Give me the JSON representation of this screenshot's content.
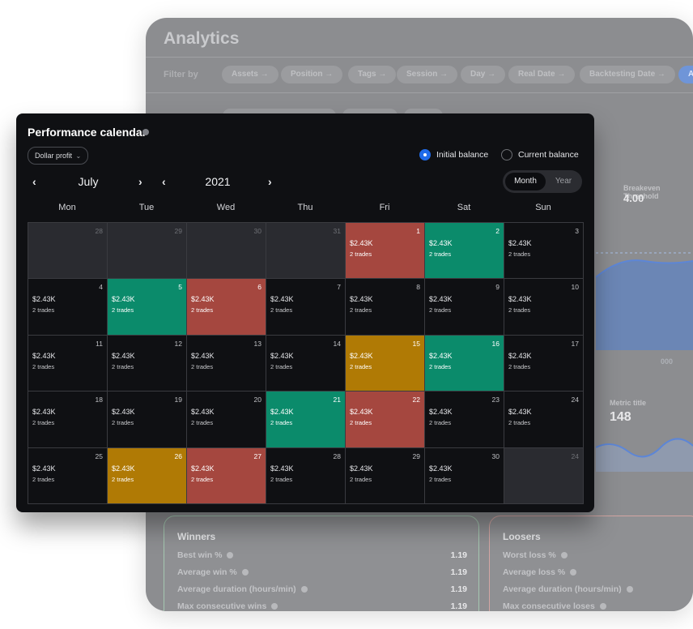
{
  "background": {
    "title": "Analytics",
    "filter_label": "Filter by",
    "filters": [
      "Assets →",
      "Position →",
      "Tags →",
      "Session →",
      "Day →",
      "Real Date →",
      "Backtesting Date →",
      "A"
    ],
    "metric1": {
      "title": "Breakeven Threshold",
      "value": "4.00"
    },
    "axis_tick": "000",
    "metric2": {
      "title": "Metric title",
      "value": "148"
    },
    "winners": {
      "title": "Winners",
      "rows": [
        {
          "label": "Best win %",
          "value": "1.19"
        },
        {
          "label": "Average win %",
          "value": "1.19"
        },
        {
          "label": "Average duration (hours/min)",
          "value": "1.19"
        },
        {
          "label": "Max consecutive wins",
          "value": "1.19"
        }
      ]
    },
    "loosers": {
      "title": "Loosers",
      "rows": [
        {
          "label": "Worst loss %"
        },
        {
          "label": "Average loss %"
        },
        {
          "label": "Average duration (hours/min)"
        },
        {
          "label": "Max consecutive loses"
        }
      ]
    }
  },
  "calendar": {
    "title": "Performance calendar",
    "metric_select": "Dollar profit",
    "balance_options": {
      "initial": "Initial balance",
      "current": "Current balance",
      "selected": "initial"
    },
    "month": "July",
    "year": "2021",
    "view_toggle": {
      "month": "Month",
      "year": "Year",
      "active": "Month"
    },
    "weekdays": [
      "Mon",
      "Tue",
      "Wed",
      "Thu",
      "Fri",
      "Sat",
      "Sun"
    ],
    "colors": {
      "loss": "#a5473f",
      "profit": "#0b8b6b",
      "neutral": "#b07a05",
      "outside": "#2a2b30"
    },
    "days": [
      {
        "day": "28",
        "state": "outside"
      },
      {
        "day": "29",
        "state": "outside"
      },
      {
        "day": "30",
        "state": "outside"
      },
      {
        "day": "31",
        "state": "outside"
      },
      {
        "day": "1",
        "state": "loss",
        "amount": "$2.43K",
        "trades": "2 trades"
      },
      {
        "day": "2",
        "state": "profit",
        "amount": "$2.43K",
        "trades": "2 trades"
      },
      {
        "day": "3",
        "state": "default",
        "amount": "$2.43K",
        "trades": "2 trades"
      },
      {
        "day": "4",
        "state": "default",
        "amount": "$2.43K",
        "trades": "2 trades"
      },
      {
        "day": "5",
        "state": "profit",
        "amount": "$2.43K",
        "trades": "2 trades"
      },
      {
        "day": "6",
        "state": "loss",
        "amount": "$2.43K",
        "trades": "2 trades"
      },
      {
        "day": "7",
        "state": "default",
        "amount": "$2.43K",
        "trades": "2 trades"
      },
      {
        "day": "8",
        "state": "default",
        "amount": "$2.43K",
        "trades": "2 trades"
      },
      {
        "day": "9",
        "state": "default",
        "amount": "$2.43K",
        "trades": "2 trades"
      },
      {
        "day": "10",
        "state": "default",
        "amount": "$2.43K",
        "trades": "2 trades"
      },
      {
        "day": "11",
        "state": "default",
        "amount": "$2.43K",
        "trades": "2 trades"
      },
      {
        "day": "12",
        "state": "default",
        "amount": "$2.43K",
        "trades": "2 trades"
      },
      {
        "day": "13",
        "state": "default",
        "amount": "$2.43K",
        "trades": "2 trades"
      },
      {
        "day": "14",
        "state": "default",
        "amount": "$2.43K",
        "trades": "2 trades"
      },
      {
        "day": "15",
        "state": "neutral",
        "amount": "$2.43K",
        "trades": "2 trades"
      },
      {
        "day": "16",
        "state": "profit",
        "amount": "$2.43K",
        "trades": "2 trades"
      },
      {
        "day": "17",
        "state": "default",
        "amount": "$2.43K",
        "trades": "2 trades"
      },
      {
        "day": "18",
        "state": "default",
        "amount": "$2.43K",
        "trades": "2 trades"
      },
      {
        "day": "19",
        "state": "default",
        "amount": "$2.43K",
        "trades": "2 trades"
      },
      {
        "day": "20",
        "state": "default",
        "amount": "$2.43K",
        "trades": "2 trades"
      },
      {
        "day": "21",
        "state": "profit",
        "amount": "$2.43K",
        "trades": "2 trades"
      },
      {
        "day": "22",
        "state": "loss",
        "amount": "$2.43K",
        "trades": "2 trades"
      },
      {
        "day": "23",
        "state": "default",
        "amount": "$2.43K",
        "trades": "2 trades"
      },
      {
        "day": "24",
        "state": "default",
        "amount": "$2.43K",
        "trades": "2 trades"
      },
      {
        "day": "25",
        "state": "default",
        "amount": "$2.43K",
        "trades": "2 trades"
      },
      {
        "day": "26",
        "state": "neutral",
        "amount": "$2.43K",
        "trades": "2 trades"
      },
      {
        "day": "27",
        "state": "loss",
        "amount": "$2.43K",
        "trades": "2 trades"
      },
      {
        "day": "28",
        "state": "default",
        "amount": "$2.43K",
        "trades": "2 trades"
      },
      {
        "day": "29",
        "state": "default",
        "amount": "$2.43K",
        "trades": "2 trades"
      },
      {
        "day": "30",
        "state": "default",
        "amount": "$2.43K",
        "trades": "2 trades"
      },
      {
        "day": "24",
        "state": "outside"
      }
    ]
  }
}
